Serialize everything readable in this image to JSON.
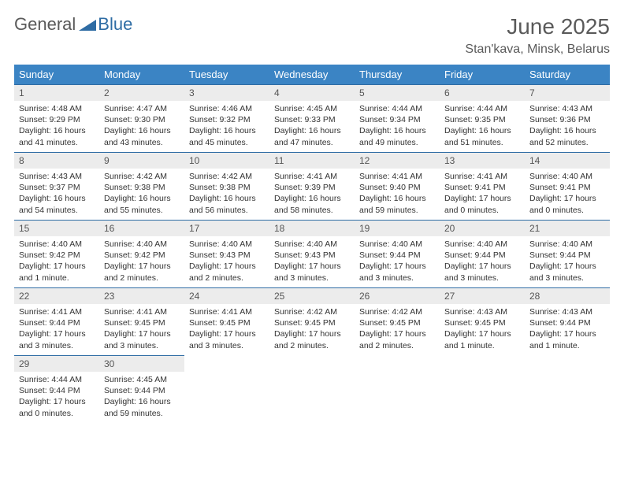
{
  "brand": {
    "part1": "General",
    "part2": "Blue"
  },
  "title": "June 2025",
  "location": "Stan'kava, Minsk, Belarus",
  "colors": {
    "header_bg": "#3b84c4",
    "header_text": "#ffffff",
    "daynum_bg": "#ececec",
    "daynum_border": "#2e6ca4",
    "body_text": "#333333",
    "title_text": "#5a5a5a",
    "brand_blue": "#2e6ca4"
  },
  "weekdays": [
    "Sunday",
    "Monday",
    "Tuesday",
    "Wednesday",
    "Thursday",
    "Friday",
    "Saturday"
  ],
  "weeks": [
    [
      {
        "n": "1",
        "sr": "Sunrise: 4:48 AM",
        "ss": "Sunset: 9:29 PM",
        "d1": "Daylight: 16 hours",
        "d2": "and 41 minutes."
      },
      {
        "n": "2",
        "sr": "Sunrise: 4:47 AM",
        "ss": "Sunset: 9:30 PM",
        "d1": "Daylight: 16 hours",
        "d2": "and 43 minutes."
      },
      {
        "n": "3",
        "sr": "Sunrise: 4:46 AM",
        "ss": "Sunset: 9:32 PM",
        "d1": "Daylight: 16 hours",
        "d2": "and 45 minutes."
      },
      {
        "n": "4",
        "sr": "Sunrise: 4:45 AM",
        "ss": "Sunset: 9:33 PM",
        "d1": "Daylight: 16 hours",
        "d2": "and 47 minutes."
      },
      {
        "n": "5",
        "sr": "Sunrise: 4:44 AM",
        "ss": "Sunset: 9:34 PM",
        "d1": "Daylight: 16 hours",
        "d2": "and 49 minutes."
      },
      {
        "n": "6",
        "sr": "Sunrise: 4:44 AM",
        "ss": "Sunset: 9:35 PM",
        "d1": "Daylight: 16 hours",
        "d2": "and 51 minutes."
      },
      {
        "n": "7",
        "sr": "Sunrise: 4:43 AM",
        "ss": "Sunset: 9:36 PM",
        "d1": "Daylight: 16 hours",
        "d2": "and 52 minutes."
      }
    ],
    [
      {
        "n": "8",
        "sr": "Sunrise: 4:43 AM",
        "ss": "Sunset: 9:37 PM",
        "d1": "Daylight: 16 hours",
        "d2": "and 54 minutes."
      },
      {
        "n": "9",
        "sr": "Sunrise: 4:42 AM",
        "ss": "Sunset: 9:38 PM",
        "d1": "Daylight: 16 hours",
        "d2": "and 55 minutes."
      },
      {
        "n": "10",
        "sr": "Sunrise: 4:42 AM",
        "ss": "Sunset: 9:38 PM",
        "d1": "Daylight: 16 hours",
        "d2": "and 56 minutes."
      },
      {
        "n": "11",
        "sr": "Sunrise: 4:41 AM",
        "ss": "Sunset: 9:39 PM",
        "d1": "Daylight: 16 hours",
        "d2": "and 58 minutes."
      },
      {
        "n": "12",
        "sr": "Sunrise: 4:41 AM",
        "ss": "Sunset: 9:40 PM",
        "d1": "Daylight: 16 hours",
        "d2": "and 59 minutes."
      },
      {
        "n": "13",
        "sr": "Sunrise: 4:41 AM",
        "ss": "Sunset: 9:41 PM",
        "d1": "Daylight: 17 hours",
        "d2": "and 0 minutes."
      },
      {
        "n": "14",
        "sr": "Sunrise: 4:40 AM",
        "ss": "Sunset: 9:41 PM",
        "d1": "Daylight: 17 hours",
        "d2": "and 0 minutes."
      }
    ],
    [
      {
        "n": "15",
        "sr": "Sunrise: 4:40 AM",
        "ss": "Sunset: 9:42 PM",
        "d1": "Daylight: 17 hours",
        "d2": "and 1 minute."
      },
      {
        "n": "16",
        "sr": "Sunrise: 4:40 AM",
        "ss": "Sunset: 9:42 PM",
        "d1": "Daylight: 17 hours",
        "d2": "and 2 minutes."
      },
      {
        "n": "17",
        "sr": "Sunrise: 4:40 AM",
        "ss": "Sunset: 9:43 PM",
        "d1": "Daylight: 17 hours",
        "d2": "and 2 minutes."
      },
      {
        "n": "18",
        "sr": "Sunrise: 4:40 AM",
        "ss": "Sunset: 9:43 PM",
        "d1": "Daylight: 17 hours",
        "d2": "and 3 minutes."
      },
      {
        "n": "19",
        "sr": "Sunrise: 4:40 AM",
        "ss": "Sunset: 9:44 PM",
        "d1": "Daylight: 17 hours",
        "d2": "and 3 minutes."
      },
      {
        "n": "20",
        "sr": "Sunrise: 4:40 AM",
        "ss": "Sunset: 9:44 PM",
        "d1": "Daylight: 17 hours",
        "d2": "and 3 minutes."
      },
      {
        "n": "21",
        "sr": "Sunrise: 4:40 AM",
        "ss": "Sunset: 9:44 PM",
        "d1": "Daylight: 17 hours",
        "d2": "and 3 minutes."
      }
    ],
    [
      {
        "n": "22",
        "sr": "Sunrise: 4:41 AM",
        "ss": "Sunset: 9:44 PM",
        "d1": "Daylight: 17 hours",
        "d2": "and 3 minutes."
      },
      {
        "n": "23",
        "sr": "Sunrise: 4:41 AM",
        "ss": "Sunset: 9:45 PM",
        "d1": "Daylight: 17 hours",
        "d2": "and 3 minutes."
      },
      {
        "n": "24",
        "sr": "Sunrise: 4:41 AM",
        "ss": "Sunset: 9:45 PM",
        "d1": "Daylight: 17 hours",
        "d2": "and 3 minutes."
      },
      {
        "n": "25",
        "sr": "Sunrise: 4:42 AM",
        "ss": "Sunset: 9:45 PM",
        "d1": "Daylight: 17 hours",
        "d2": "and 2 minutes."
      },
      {
        "n": "26",
        "sr": "Sunrise: 4:42 AM",
        "ss": "Sunset: 9:45 PM",
        "d1": "Daylight: 17 hours",
        "d2": "and 2 minutes."
      },
      {
        "n": "27",
        "sr": "Sunrise: 4:43 AM",
        "ss": "Sunset: 9:45 PM",
        "d1": "Daylight: 17 hours",
        "d2": "and 1 minute."
      },
      {
        "n": "28",
        "sr": "Sunrise: 4:43 AM",
        "ss": "Sunset: 9:44 PM",
        "d1": "Daylight: 17 hours",
        "d2": "and 1 minute."
      }
    ],
    [
      {
        "n": "29",
        "sr": "Sunrise: 4:44 AM",
        "ss": "Sunset: 9:44 PM",
        "d1": "Daylight: 17 hours",
        "d2": "and 0 minutes."
      },
      {
        "n": "30",
        "sr": "Sunrise: 4:45 AM",
        "ss": "Sunset: 9:44 PM",
        "d1": "Daylight: 16 hours",
        "d2": "and 59 minutes."
      },
      null,
      null,
      null,
      null,
      null
    ]
  ]
}
